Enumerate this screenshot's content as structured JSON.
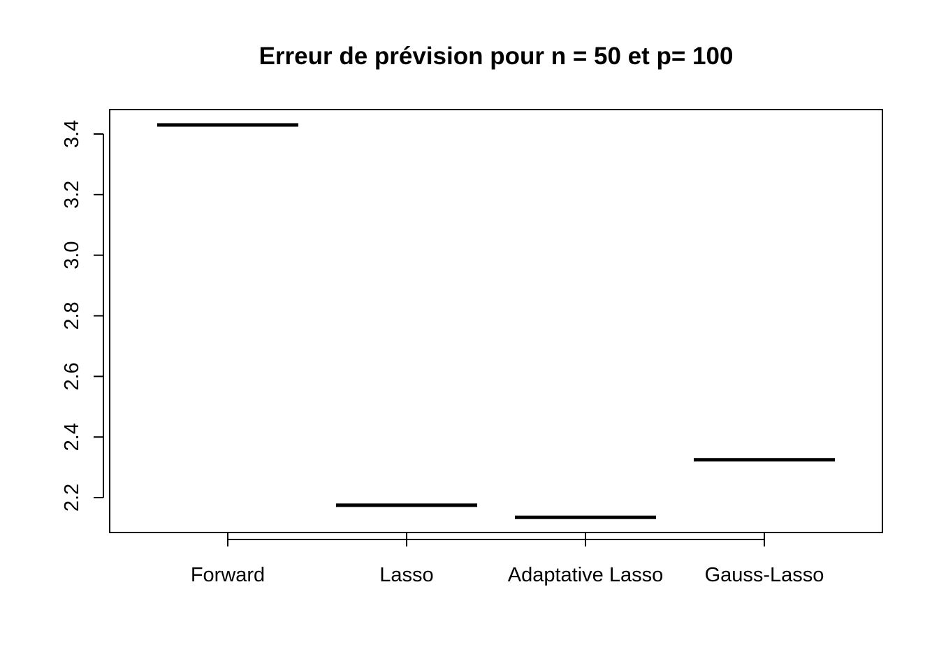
{
  "chart_data": {
    "type": "boxplot",
    "title": "Erreur de prévision pour n = 50 et p= 100",
    "xlabel": "",
    "ylabel": "",
    "categories": [
      "Forward",
      "Lasso",
      "Adaptative Lasso",
      "Gauss-Lasso"
    ],
    "values": [
      3.43,
      2.175,
      2.135,
      2.325
    ],
    "yticks": [
      "2.2",
      "2.4",
      "2.6",
      "2.8",
      "3.0",
      "3.2",
      "3.4"
    ],
    "ylim": [
      2.12,
      3.48
    ],
    "grid": false,
    "legend": "none",
    "colors": {
      "line": "#000000",
      "background": "#ffffff"
    }
  }
}
